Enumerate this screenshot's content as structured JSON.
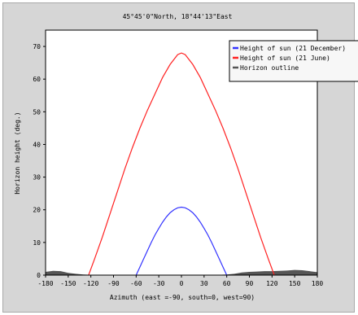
{
  "chart_data": {
    "type": "line",
    "title": "45°45'0\"North, 18°44'13\"East",
    "xlabel": "Azimuth (east =-90, south=0, west=90)",
    "ylabel": "Horizon height (deg.)",
    "xlim": [
      -180,
      180
    ],
    "ylim": [
      0,
      75
    ],
    "xticks": [
      -180,
      -150,
      -120,
      -90,
      -60,
      -30,
      0,
      30,
      60,
      90,
      120,
      150,
      180
    ],
    "yticks": [
      0,
      10,
      20,
      30,
      40,
      50,
      60,
      70
    ],
    "legend_position": "top-right",
    "grid": false,
    "series": [
      {
        "name": "Height of sun (21 December)",
        "color": "#3333ff",
        "x": [
          -60,
          -55,
          -50,
          -45,
          -40,
          -35,
          -30,
          -25,
          -20,
          -15,
          -10,
          -5,
          0,
          5,
          10,
          15,
          20,
          25,
          30,
          35,
          40,
          45,
          50,
          55,
          60
        ],
        "y": [
          0,
          2.5,
          5,
          7.5,
          10,
          12.3,
          14.3,
          16.2,
          17.8,
          19.1,
          20.0,
          20.6,
          20.8,
          20.6,
          20.0,
          19.1,
          17.8,
          16.2,
          14.3,
          12.3,
          10,
          7.5,
          5,
          2.5,
          0
        ]
      },
      {
        "name": "Height of sun (21 June)",
        "color": "#ff2222",
        "x": [
          -123,
          -115,
          -105,
          -95,
          -85,
          -75,
          -65,
          -55,
          -45,
          -35,
          -25,
          -15,
          -5,
          0,
          5,
          15,
          25,
          35,
          45,
          55,
          65,
          75,
          85,
          95,
          105,
          115,
          123
        ],
        "y": [
          0,
          5,
          11.5,
          18.5,
          25.5,
          32.5,
          39,
          45,
          50.5,
          55.5,
          60.5,
          64.5,
          67.5,
          68,
          67.5,
          64.5,
          60.5,
          55.5,
          50.5,
          45,
          39,
          32.5,
          25.5,
          18.5,
          11.5,
          5,
          0
        ]
      },
      {
        "name": "Horizon outline",
        "color": "#555555",
        "x": [
          -180,
          -170,
          -160,
          -150,
          -140,
          -130,
          -120,
          -110,
          -100,
          -90,
          -80,
          -70,
          -60,
          -50,
          -40,
          -30,
          -20,
          -10,
          0,
          10,
          20,
          30,
          40,
          50,
          60,
          70,
          80,
          90,
          100,
          110,
          120,
          130,
          140,
          150,
          160,
          170,
          180
        ],
        "y": [
          1,
          1.3,
          1.2,
          0.7,
          0.4,
          0.2,
          0.1,
          0.1,
          0.1,
          0.1,
          0.1,
          0.1,
          0.1,
          0.1,
          0.1,
          0.1,
          0.1,
          0.1,
          0.1,
          0.1,
          0.1,
          0.1,
          0.1,
          0.1,
          0.2,
          0.4,
          0.8,
          1.0,
          1.1,
          1.2,
          1.2,
          1.3,
          1.4,
          1.6,
          1.5,
          1.2,
          0.9
        ]
      }
    ]
  }
}
